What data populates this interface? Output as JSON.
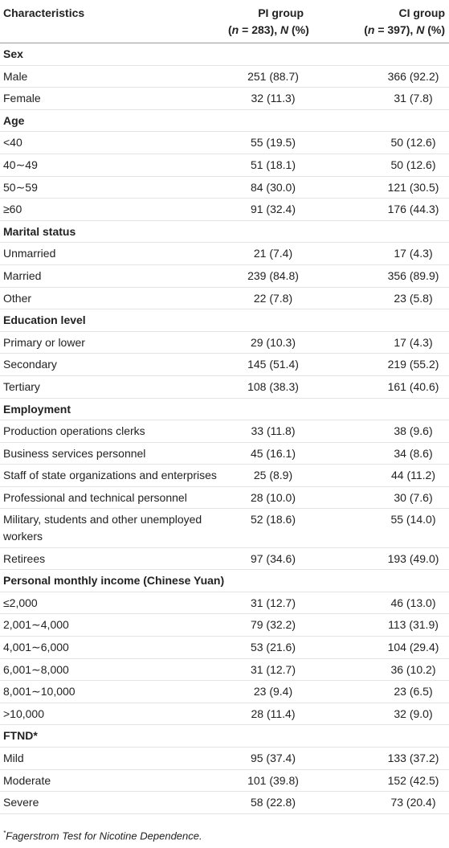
{
  "table": {
    "header": [
      {
        "line1": "Characteristics"
      },
      {
        "line1": "PI group",
        "line2": [
          {
            "text": "("
          },
          {
            "text": "n",
            "italic": true
          },
          {
            "text": " = 283), "
          },
          {
            "text": "N",
            "italic": true
          },
          {
            "text": " (%)"
          }
        ]
      },
      {
        "line1": "CI group",
        "line2": [
          {
            "text": "("
          },
          {
            "text": "n",
            "italic": true
          },
          {
            "text": " = 397), "
          },
          {
            "text": "N",
            "italic": true
          },
          {
            "text": " (%)"
          }
        ]
      }
    ],
    "sections": [
      {
        "title": "Sex",
        "rows": [
          [
            "Male",
            "251 (88.7)",
            "366 (92.2)"
          ],
          [
            "Female",
            "32 (11.3)",
            "31 (7.8)"
          ]
        ]
      },
      {
        "title": "Age",
        "rows": [
          [
            "<40",
            "55 (19.5)",
            "50 (12.6)"
          ],
          [
            "40∼49",
            "51 (18.1)",
            "50 (12.6)"
          ],
          [
            "50∼59",
            "84 (30.0)",
            "121 (30.5)"
          ],
          [
            "≥60",
            "91 (32.4)",
            "176 (44.3)"
          ]
        ]
      },
      {
        "title": "Marital status",
        "rows": [
          [
            "Unmarried",
            "21 (7.4)",
            "17 (4.3)"
          ],
          [
            "Married",
            "239 (84.8)",
            "356 (89.9)"
          ],
          [
            "Other",
            "22 (7.8)",
            "23 (5.8)"
          ]
        ]
      },
      {
        "title": "Education level",
        "rows": [
          [
            "Primary or lower",
            "29 (10.3)",
            "17 (4.3)"
          ],
          [
            "Secondary",
            "145 (51.4)",
            "219 (55.2)"
          ],
          [
            "Tertiary",
            "108 (38.3)",
            "161 (40.6)"
          ]
        ]
      },
      {
        "title": "Employment",
        "rows": [
          [
            "Production operations clerks",
            "33 (11.8)",
            "38 (9.6)"
          ],
          [
            "Business services personnel",
            "45 (16.1)",
            "34 (8.6)"
          ],
          [
            "Staff of state organizations and enterprises",
            "25 (8.9)",
            "44 (11.2)"
          ],
          [
            "Professional and technical personnel",
            "28 (10.0)",
            "30 (7.6)"
          ],
          [
            "Military, students and other unemployed workers",
            "52 (18.6)",
            "55 (14.0)"
          ],
          [
            "Retirees",
            "97 (34.6)",
            "193 (49.0)"
          ]
        ]
      },
      {
        "title": "Personal monthly income (Chinese Yuan)",
        "rows": [
          [
            "≤2,000",
            "31 (12.7)",
            "46 (13.0)"
          ],
          [
            "2,001∼4,000",
            "79 (32.2)",
            "113 (31.9)"
          ],
          [
            "4,001∼6,000",
            "53 (21.6)",
            "104 (29.4)"
          ],
          [
            "6,001∼8,000",
            "31 (12.7)",
            "36 (10.2)"
          ],
          [
            "8,001∼10,000",
            "23 (9.4)",
            "23 (6.5)"
          ],
          [
            ">10,000",
            "28 (11.4)",
            "32 (9.0)"
          ]
        ]
      },
      {
        "title": "FTND*",
        "rows": [
          [
            "Mild",
            "95 (37.4)",
            "133 (37.2)"
          ],
          [
            "Moderate",
            "101 (39.8)",
            "152 (42.5)"
          ],
          [
            "Severe",
            "58 (22.8)",
            "73 (20.4)"
          ]
        ]
      }
    ],
    "footnote": {
      "mark": "*",
      "text": "Fagerstrom Test for Nicotine Dependence."
    }
  }
}
